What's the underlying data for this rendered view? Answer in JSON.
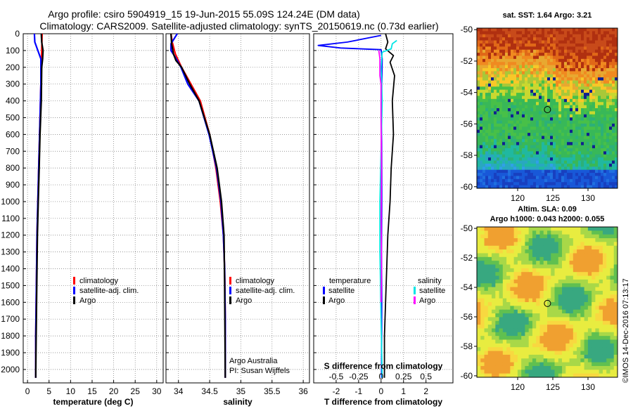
{
  "title_line1": "Argo profile: csiro 5904919_15 19-Jun-2015 55.09S 124.24E (DM data)",
  "title_line2": "Climatology: CARS2009. Satellite-adjusted climatology: synTS_20150619.nc (0.73d earlier)",
  "credit_line1": "Argo Australia",
  "credit_line2": "PI: Susan Wijffels",
  "watermark": "©IMOS 14-Dec-2016 07:13:17",
  "colors": {
    "climatology": "#ff0000",
    "satellite": "#0000ff",
    "argo": "#000000",
    "cyan": "#00e5e5",
    "magenta": "#ff00ff"
  },
  "chart_data": [
    {
      "type": "line",
      "name": "temperature",
      "xlabel": "temperature (deg C)",
      "xlim": [
        -1,
        31.5
      ],
      "xticks": [
        0,
        5,
        10,
        15,
        20,
        25,
        30
      ],
      "xtick_labels": [
        "0",
        "5",
        "10",
        "15",
        "20",
        "25",
        "30"
      ],
      "ylim": [
        0,
        2080
      ],
      "yticks": [
        0,
        100,
        200,
        300,
        400,
        500,
        600,
        700,
        800,
        900,
        1000,
        1100,
        1200,
        1300,
        1400,
        1500,
        1600,
        1700,
        1800,
        1900,
        2000
      ],
      "ytick_labels": [
        "0",
        "100",
        "200",
        "300",
        "400",
        "500",
        "600",
        "700",
        "800",
        "900",
        "1000",
        "1100",
        "1200",
        "1300",
        "1400",
        "1500",
        "1600",
        "1700",
        "1800",
        "1900",
        "2000"
      ],
      "legend": [
        "climatology",
        "satellite-adj. clim.",
        "Argo"
      ],
      "series": [
        {
          "name": "climatology",
          "color": "#ff0000",
          "x": [
            3.4,
            3.3,
            3.2,
            3.1,
            3.0,
            2.8,
            2.6,
            2.4,
            2.2,
            2.1,
            2.0,
            1.9,
            1.9
          ],
          "y": [
            0,
            100,
            200,
            300,
            400,
            600,
            800,
            1000,
            1200,
            1400,
            1600,
            1800,
            2050
          ]
        },
        {
          "name": "satellite-adj. clim.",
          "color": "#0000ff",
          "x": [
            1.6,
            1.7,
            3.1,
            3.1,
            3.0,
            2.8,
            2.6,
            2.4,
            2.2,
            2.1,
            2.0,
            1.9,
            1.9
          ],
          "y": [
            0,
            50,
            150,
            300,
            400,
            600,
            800,
            1000,
            1200,
            1400,
            1600,
            1800,
            2050
          ]
        },
        {
          "name": "Argo",
          "color": "#000000",
          "x": [
            3.2,
            3.3,
            3.6,
            3.5,
            3.3,
            3.2,
            2.9,
            2.7,
            2.5,
            2.3,
            2.2,
            2.1,
            2.0,
            1.9
          ],
          "y": [
            0,
            50,
            100,
            150,
            200,
            400,
            600,
            800,
            1000,
            1200,
            1400,
            1600,
            1800,
            2050
          ]
        }
      ]
    },
    {
      "type": "line",
      "name": "salinity",
      "xlabel": "salinity",
      "xlim": [
        33.8,
        36.1
      ],
      "xticks": [
        34,
        34.5,
        35,
        35.5,
        36
      ],
      "xtick_labels": [
        "34",
        "34.5",
        "35",
        "35.5",
        "36"
      ],
      "ylim": [
        0,
        2080
      ],
      "legend": [
        "climatology",
        "satellite-adj. clim.",
        "Argo"
      ],
      "series": [
        {
          "name": "climatology",
          "color": "#ff0000",
          "x": [
            33.88,
            33.9,
            33.95,
            34.05,
            34.2,
            34.35,
            34.5,
            34.6,
            34.67,
            34.72,
            34.74,
            34.75,
            34.75
          ],
          "y": [
            0,
            50,
            120,
            200,
            300,
            400,
            600,
            800,
            1000,
            1200,
            1400,
            1700,
            2050
          ]
        },
        {
          "name": "satellite-adj. clim.",
          "color": "#0000ff",
          "x": [
            33.98,
            33.88,
            33.88,
            33.95,
            34.04,
            34.15,
            34.33,
            34.49,
            34.61,
            34.68,
            34.72,
            34.74,
            34.75,
            34.75
          ],
          "y": [
            0,
            60,
            100,
            140,
            200,
            300,
            400,
            600,
            800,
            1000,
            1200,
            1400,
            1700,
            2050
          ]
        },
        {
          "name": "Argo",
          "color": "#000000",
          "x": [
            33.88,
            33.89,
            33.92,
            33.96,
            34.05,
            34.18,
            34.33,
            34.5,
            34.62,
            34.69,
            34.73,
            34.74,
            34.75
          ],
          "y": [
            0,
            60,
            120,
            160,
            200,
            300,
            400,
            600,
            800,
            1000,
            1200,
            1500,
            2050
          ]
        }
      ]
    },
    {
      "type": "line",
      "name": "difference",
      "xlabel": "T difference from climatology",
      "xlabel_top": "S difference from climatology",
      "xlim": [
        -3,
        3.2
      ],
      "xticks": [
        -2,
        -1,
        0,
        1,
        2
      ],
      "xtick_labels": [
        "-2",
        "-1",
        "0",
        "1",
        "2"
      ],
      "xticks_top": [
        -0.5,
        -0.25,
        0,
        0.25,
        0.5
      ],
      "xtick_labels_top": [
        "-0.5",
        "-0.25",
        "0",
        "0.25",
        "0.5"
      ],
      "ylim": [
        0,
        2080
      ],
      "legend_left_title": "temperature",
      "legend_right_title": "salinity",
      "legend_left": [
        "satellite",
        "Argo"
      ],
      "legend_right": [
        "satellite",
        "Argo"
      ],
      "series": [
        {
          "name": "temperature satellite",
          "color": "#0000ff",
          "x": [
            0.0,
            -1.5,
            -2.8,
            -1.8,
            0.0,
            0.05,
            0.03,
            0.02,
            0.03,
            0.03,
            0.02,
            0.03,
            0.02
          ],
          "y": [
            10,
            50,
            70,
            85,
            95,
            150,
            300,
            500,
            800,
            1000,
            1300,
            1600,
            2050
          ]
        },
        {
          "name": "temperature Argo",
          "color": "#000000",
          "x": [
            0.2,
            0.3,
            0.2,
            0.55,
            0.4,
            0.6,
            0.5,
            0.55,
            0.45,
            0.4,
            0.3,
            0.25,
            0.2,
            0.15,
            0.15
          ],
          "y": [
            0,
            50,
            90,
            130,
            170,
            250,
            400,
            600,
            800,
            1000,
            1200,
            1400,
            1600,
            1800,
            2050
          ]
        },
        {
          "name": "salinity satellite",
          "color": "#00e5e5",
          "x": [
            0.7,
            0.5,
            0.45,
            0.05,
            0.0,
            0.05,
            0.0,
            -0.05,
            -0.05,
            0.0,
            0.05
          ],
          "y": [
            40,
            60,
            90,
            110,
            200,
            400,
            700,
            1000,
            1300,
            1700,
            2050
          ]
        },
        {
          "name": "salinity Argo",
          "color": "#ff00ff",
          "x": [
            -0.1,
            -0.05,
            -0.05,
            0.0,
            0.0,
            0.02,
            0.0,
            0.02,
            0.0
          ],
          "y": [
            100,
            150,
            250,
            300,
            500,
            800,
            1100,
            1400,
            1600
          ]
        }
      ]
    },
    {
      "type": "heatmap",
      "name": "sst_map",
      "title": "sat. SST: 1.64 Argo: 3.21",
      "xticks": [
        120,
        125,
        130
      ],
      "xtick_labels": [
        "120",
        "125",
        "130"
      ],
      "yticks": [
        -50,
        -52,
        -54,
        -56,
        -58,
        -60
      ],
      "ytick_labels": [
        "-50",
        "-52",
        "-54",
        "-56",
        "-58",
        "-60"
      ],
      "xlim": [
        114.2,
        134.2
      ],
      "ylim": [
        -60.1,
        -49.9
      ],
      "marker": [
        124.24,
        -55.09
      ]
    },
    {
      "type": "heatmap",
      "name": "sla_map",
      "title_line1": "Altim. SLA: 0.09",
      "title_line2": "Argo h1000: 0.043 h2000: 0.055",
      "xticks": [
        120,
        125,
        130
      ],
      "xtick_labels": [
        "120",
        "125",
        "130"
      ],
      "yticks": [
        -50,
        -52,
        -54,
        -56,
        -58,
        -60
      ],
      "ytick_labels": [
        "-50",
        "-52",
        "-54",
        "-56",
        "-58",
        "-60"
      ],
      "xlim": [
        114.2,
        134.2
      ],
      "ylim": [
        -60.1,
        -49.9
      ],
      "marker": [
        124.24,
        -55.09
      ]
    }
  ]
}
